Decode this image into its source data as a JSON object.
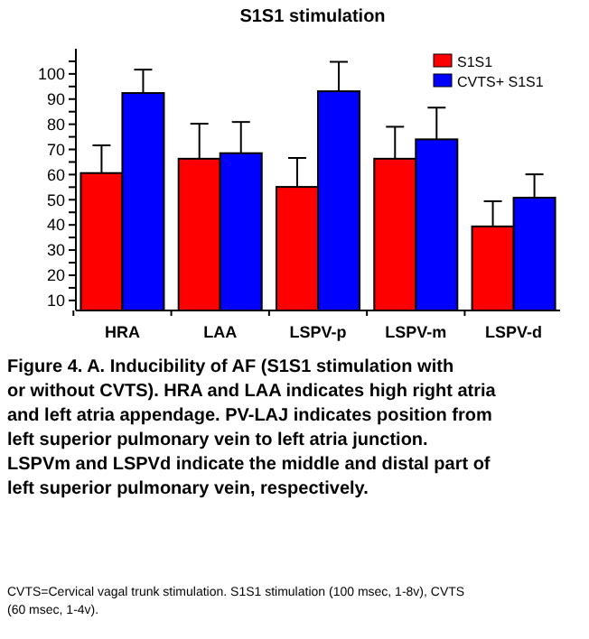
{
  "chart_data": {
    "type": "bar",
    "title": "S1S1 stimulation",
    "categories": [
      "HRA",
      "LAA",
      "LSPV-p",
      "LSPV-m",
      "LSPV-d"
    ],
    "series": [
      {
        "name": "S1S1",
        "color": "#ff0000",
        "values": [
          60.6,
          66.3,
          55.1,
          66.3,
          39.4
        ],
        "errors": [
          [
            60.6,
            71.6
          ],
          [
            66.3,
            80.2
          ],
          [
            55.1,
            66.6
          ],
          [
            66.3,
            79
          ],
          [
            39.4,
            49.4
          ]
        ]
      },
      {
        "name": "CVTS+ S1S1",
        "color": "#0000ff",
        "values": [
          92.4,
          68.5,
          93.1,
          74,
          50.8
        ],
        "errors": [
          [
            92.4,
            101.7
          ],
          [
            68.5,
            80.9
          ],
          [
            93.1,
            104.8
          ],
          [
            74,
            86.6
          ],
          [
            50.8,
            60.1
          ]
        ]
      }
    ],
    "ylim": [
      6,
      110
    ],
    "yticks": [
      10,
      {
        "value": 15,
        "label": null
      },
      20,
      {
        "value": 25,
        "label": null
      },
      30,
      {
        "value": 35,
        "label": null
      },
      40,
      {
        "value": 45,
        "label": null
      },
      50,
      {
        "value": 55,
        "label": null
      },
      60,
      {
        "value": 65,
        "label": null
      },
      70,
      {
        "value": 75,
        "label": null
      },
      80,
      {
        "value": 85,
        "label": null
      },
      90,
      {
        "value": 95,
        "label": null
      },
      100,
      {
        "value": 105,
        "label": null
      }
    ],
    "legend": "top right",
    "grid": false,
    "annotations": [
      "Figure 4. A. Inducibility of AF (S1S1 stimulation with or without CVTS). HRA and LAA indicates high right atria and left atria appendage. PV-LAJ indicates position from left superior pulmonary vein to left atria junction. LSPVm and LSPVd indicate the middle and distal part of left superior pulmonary vein, respectively.",
      "CVTS=Cervical vagal trunk stimulation. S1S1 stimulation (100 msec, 1-8v), CVTS (60 msec, 1-4v)."
    ]
  }
}
